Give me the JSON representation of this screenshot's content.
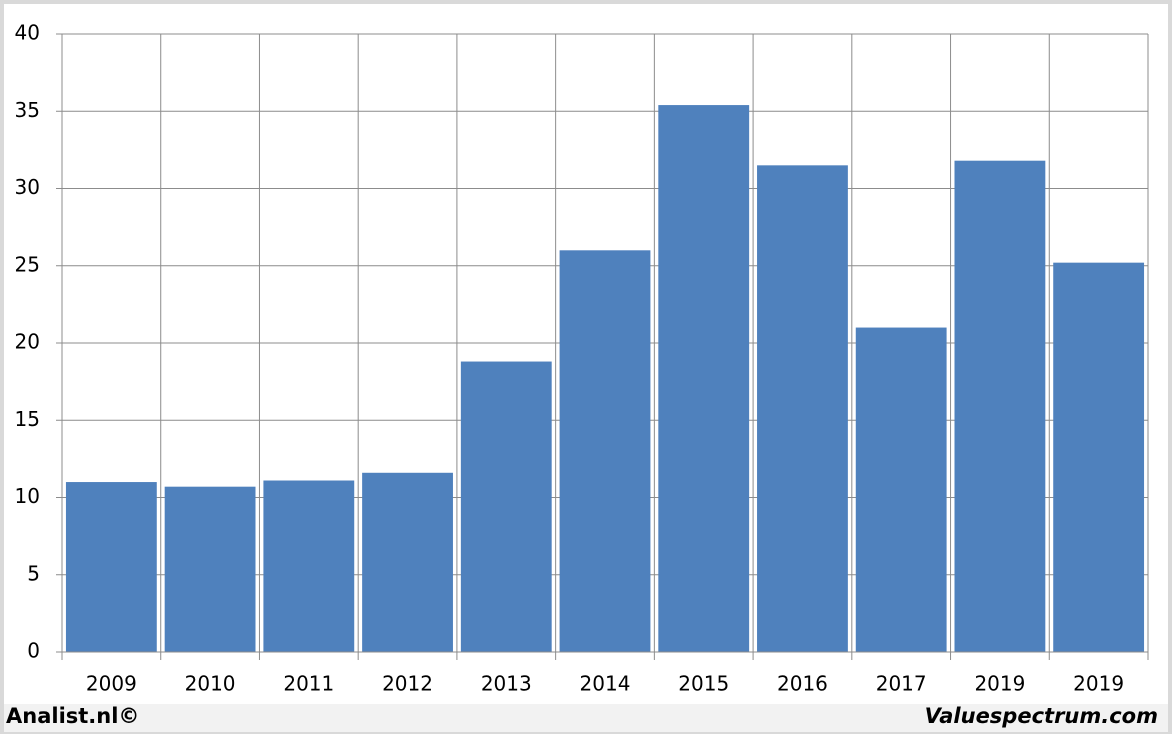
{
  "chart_data": {
    "type": "bar",
    "categories": [
      "2009",
      "2010",
      "2011",
      "2012",
      "2013",
      "2014",
      "2015",
      "2016",
      "2017",
      "2019",
      "2019"
    ],
    "values": [
      11.0,
      10.7,
      11.1,
      11.6,
      18.8,
      26.0,
      35.4,
      31.5,
      21.0,
      31.8,
      25.2
    ],
    "color": "#4f81bd",
    "ylim": [
      0,
      40
    ],
    "yticks": [
      0,
      5,
      10,
      15,
      20,
      25,
      30,
      35,
      40
    ],
    "grid": true,
    "annotations": [
      "Analist.nl©",
      "Valuespectrum.com"
    ]
  }
}
